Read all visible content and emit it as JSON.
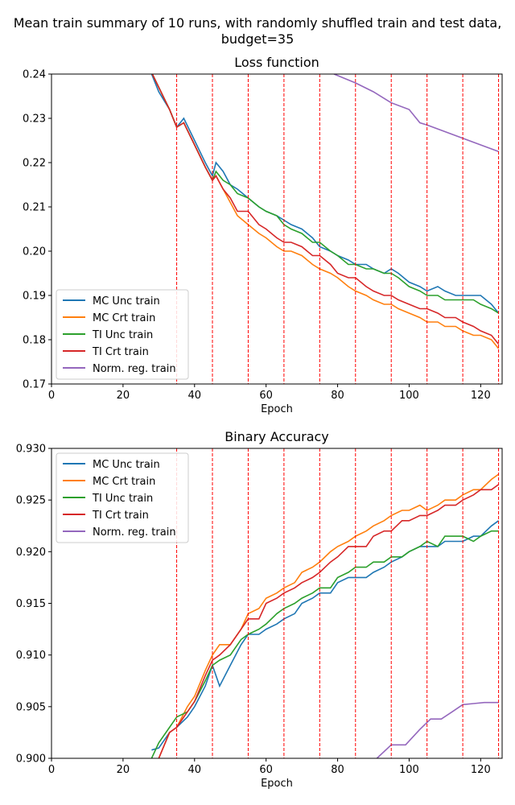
{
  "suptitle_line1": "Mean train summary of 10 runs, with randomly shuffled train and test data,",
  "suptitle_line2": "budget=35",
  "colors": {
    "MC Unc train": "#1f77b4",
    "MC Crt train": "#ff7f0e",
    "TI Unc train": "#2ca02c",
    "TI Crt train": "#d62728",
    "Norm. reg. train": "#9467bd",
    "vlines": "#ff0000"
  },
  "chart_data": [
    {
      "type": "line",
      "title": "Loss function",
      "xlabel": "Epoch",
      "ylabel": "",
      "xlim": [
        0,
        126
      ],
      "ylim": [
        0.17,
        0.24
      ],
      "xticks": [
        0,
        20,
        40,
        60,
        80,
        100,
        120
      ],
      "yticks": [
        0.17,
        0.18,
        0.19,
        0.2,
        0.21,
        0.22,
        0.23,
        0.24
      ],
      "ytick_labels": [
        "0.17",
        "0.18",
        "0.19",
        "0.20",
        "0.21",
        "0.22",
        "0.23",
        "0.24"
      ],
      "grid": false,
      "legend": "lower left",
      "vlines": [
        35,
        45,
        55,
        65,
        75,
        85,
        95,
        105,
        115,
        125
      ],
      "series": [
        {
          "name": "MC Unc train",
          "x": [
            27,
            30,
            33,
            35,
            37,
            40,
            43,
            45,
            46,
            48,
            50,
            52,
            55,
            58,
            60,
            63,
            65,
            67,
            70,
            73,
            75,
            78,
            80,
            83,
            85,
            88,
            90,
            93,
            95,
            97,
            100,
            103,
            105,
            108,
            110,
            113,
            115,
            118,
            120,
            123,
            125
          ],
          "y": [
            0.242,
            0.236,
            0.232,
            0.228,
            0.23,
            0.225,
            0.22,
            0.217,
            0.22,
            0.218,
            0.215,
            0.214,
            0.212,
            0.21,
            0.209,
            0.208,
            0.207,
            0.206,
            0.205,
            0.203,
            0.201,
            0.2,
            0.199,
            0.198,
            0.197,
            0.197,
            0.196,
            0.195,
            0.196,
            0.195,
            0.193,
            0.192,
            0.191,
            0.192,
            0.191,
            0.19,
            0.19,
            0.19,
            0.19,
            0.188,
            0.186
          ]
        },
        {
          "name": "MC Crt train",
          "x": [
            27,
            30,
            33,
            35,
            37,
            40,
            43,
            45,
            46,
            48,
            50,
            52,
            55,
            58,
            60,
            63,
            65,
            67,
            70,
            73,
            75,
            78,
            80,
            83,
            85,
            88,
            90,
            93,
            95,
            97,
            100,
            103,
            105,
            108,
            110,
            113,
            115,
            118,
            120,
            123,
            125
          ],
          "y": [
            0.242,
            0.237,
            0.232,
            0.228,
            0.229,
            0.224,
            0.219,
            0.216,
            0.217,
            0.214,
            0.211,
            0.208,
            0.206,
            0.204,
            0.203,
            0.201,
            0.2,
            0.2,
            0.199,
            0.197,
            0.196,
            0.195,
            0.194,
            0.192,
            0.191,
            0.19,
            0.189,
            0.188,
            0.188,
            0.187,
            0.186,
            0.185,
            0.184,
            0.184,
            0.183,
            0.183,
            0.182,
            0.181,
            0.181,
            0.18,
            0.178
          ]
        },
        {
          "name": "TI Unc train",
          "x": [
            27,
            30,
            33,
            35,
            37,
            40,
            43,
            45,
            46,
            48,
            50,
            52,
            55,
            58,
            60,
            63,
            65,
            67,
            70,
            73,
            75,
            78,
            80,
            83,
            85,
            88,
            90,
            93,
            95,
            97,
            100,
            103,
            105,
            108,
            110,
            113,
            115,
            118,
            120,
            123,
            125
          ],
          "y": [
            0.242,
            0.237,
            0.232,
            0.228,
            0.229,
            0.224,
            0.219,
            0.216,
            0.218,
            0.216,
            0.215,
            0.213,
            0.212,
            0.21,
            0.209,
            0.208,
            0.206,
            0.205,
            0.204,
            0.202,
            0.202,
            0.2,
            0.199,
            0.197,
            0.197,
            0.196,
            0.196,
            0.195,
            0.195,
            0.194,
            0.192,
            0.191,
            0.19,
            0.19,
            0.189,
            0.189,
            0.189,
            0.189,
            0.188,
            0.187,
            0.186
          ]
        },
        {
          "name": "TI Crt train",
          "x": [
            27,
            30,
            33,
            35,
            37,
            40,
            43,
            45,
            46,
            48,
            50,
            52,
            55,
            58,
            60,
            63,
            65,
            67,
            70,
            73,
            75,
            78,
            80,
            83,
            85,
            88,
            90,
            93,
            95,
            97,
            100,
            103,
            105,
            108,
            110,
            113,
            115,
            118,
            120,
            123,
            125
          ],
          "y": [
            0.242,
            0.237,
            0.232,
            0.228,
            0.229,
            0.224,
            0.219,
            0.216,
            0.217,
            0.214,
            0.212,
            0.209,
            0.209,
            0.206,
            0.205,
            0.203,
            0.202,
            0.202,
            0.201,
            0.199,
            0.199,
            0.197,
            0.195,
            0.194,
            0.194,
            0.192,
            0.191,
            0.19,
            0.19,
            0.189,
            0.188,
            0.187,
            0.187,
            0.186,
            0.185,
            0.185,
            0.184,
            0.183,
            0.182,
            0.181,
            0.179
          ]
        },
        {
          "name": "Norm. reg. train",
          "x": [
            79,
            85,
            90,
            95,
            100,
            103,
            105,
            110,
            115,
            120,
            125
          ],
          "y": [
            0.24,
            0.238,
            0.236,
            0.2335,
            0.232,
            0.229,
            0.2285,
            0.227,
            0.2255,
            0.224,
            0.2225
          ]
        }
      ]
    },
    {
      "type": "line",
      "title": "Binary Accuracy",
      "xlabel": "Epoch",
      "ylabel": "",
      "xlim": [
        0,
        126
      ],
      "ylim": [
        0.9,
        0.93
      ],
      "xticks": [
        0,
        20,
        40,
        60,
        80,
        100,
        120
      ],
      "yticks": [
        0.9,
        0.905,
        0.91,
        0.915,
        0.92,
        0.925,
        0.93
      ],
      "ytick_labels": [
        "0.900",
        "0.905",
        "0.910",
        "0.915",
        "0.920",
        "0.925",
        "0.930"
      ],
      "grid": false,
      "legend": "upper left",
      "vlines": [
        35,
        45,
        55,
        65,
        75,
        85,
        95,
        105,
        115,
        125
      ],
      "series": [
        {
          "name": "MC Unc train",
          "x": [
            28,
            30,
            33,
            35,
            38,
            40,
            43,
            45,
            47,
            50,
            53,
            55,
            58,
            60,
            63,
            65,
            68,
            70,
            73,
            75,
            78,
            80,
            83,
            85,
            88,
            90,
            93,
            95,
            98,
            100,
            103,
            105,
            108,
            110,
            113,
            115,
            118,
            120,
            123,
            125
          ],
          "y": [
            0.9008,
            0.901,
            0.9025,
            0.903,
            0.904,
            0.905,
            0.907,
            0.909,
            0.907,
            0.909,
            0.911,
            0.912,
            0.912,
            0.9125,
            0.913,
            0.9135,
            0.914,
            0.915,
            0.9155,
            0.916,
            0.916,
            0.917,
            0.9175,
            0.9175,
            0.9175,
            0.918,
            0.9185,
            0.919,
            0.9195,
            0.92,
            0.9205,
            0.9205,
            0.9205,
            0.921,
            0.921,
            0.921,
            0.9215,
            0.9215,
            0.9225,
            0.923
          ]
        },
        {
          "name": "MC Crt train",
          "x": [
            28,
            30,
            33,
            35,
            38,
            40,
            43,
            45,
            47,
            50,
            53,
            55,
            58,
            60,
            63,
            65,
            68,
            70,
            73,
            75,
            78,
            80,
            83,
            85,
            88,
            90,
            93,
            95,
            98,
            100,
            103,
            105,
            108,
            110,
            113,
            115,
            118,
            120,
            123,
            125
          ],
          "y": [
            0.8995,
            0.9,
            0.9025,
            0.903,
            0.905,
            0.906,
            0.9085,
            0.91,
            0.911,
            0.911,
            0.9125,
            0.914,
            0.9145,
            0.9155,
            0.916,
            0.9165,
            0.917,
            0.918,
            0.9185,
            0.919,
            0.92,
            0.9205,
            0.921,
            0.9215,
            0.922,
            0.9225,
            0.923,
            0.9235,
            0.924,
            0.924,
            0.9245,
            0.924,
            0.9245,
            0.925,
            0.925,
            0.9255,
            0.926,
            0.926,
            0.927,
            0.9275
          ]
        },
        {
          "name": "TI Unc train",
          "x": [
            28,
            30,
            33,
            35,
            38,
            40,
            43,
            45,
            47,
            50,
            53,
            55,
            58,
            60,
            63,
            65,
            68,
            70,
            73,
            75,
            78,
            80,
            83,
            85,
            88,
            90,
            93,
            95,
            98,
            100,
            103,
            105,
            108,
            110,
            113,
            115,
            118,
            120,
            123,
            125
          ],
          "y": [
            0.9,
            0.9015,
            0.903,
            0.904,
            0.9045,
            0.9055,
            0.9075,
            0.909,
            0.9095,
            0.91,
            0.9115,
            0.912,
            0.9125,
            0.913,
            0.914,
            0.9145,
            0.915,
            0.9155,
            0.916,
            0.9165,
            0.9165,
            0.9175,
            0.918,
            0.9185,
            0.9185,
            0.919,
            0.919,
            0.9195,
            0.9195,
            0.92,
            0.9205,
            0.921,
            0.9205,
            0.9215,
            0.9215,
            0.9215,
            0.921,
            0.9215,
            0.922,
            0.922
          ]
        },
        {
          "name": "TI Crt train",
          "x": [
            28,
            30,
            33,
            35,
            38,
            40,
            43,
            45,
            47,
            50,
            53,
            55,
            58,
            60,
            63,
            65,
            68,
            70,
            73,
            75,
            78,
            80,
            83,
            85,
            88,
            90,
            93,
            95,
            98,
            100,
            103,
            105,
            108,
            110,
            113,
            115,
            118,
            120,
            123,
            125
          ],
          "y": [
            0.8995,
            0.9,
            0.9025,
            0.903,
            0.9045,
            0.9055,
            0.908,
            0.9095,
            0.91,
            0.911,
            0.9125,
            0.9135,
            0.9135,
            0.915,
            0.9155,
            0.916,
            0.9165,
            0.917,
            0.9175,
            0.918,
            0.919,
            0.9195,
            0.9205,
            0.9205,
            0.9205,
            0.9215,
            0.922,
            0.922,
            0.923,
            0.923,
            0.9235,
            0.9235,
            0.924,
            0.9245,
            0.9245,
            0.925,
            0.9255,
            0.926,
            0.926,
            0.9265
          ]
        },
        {
          "name": "Norm. reg. train",
          "x": [
            91,
            95,
            99,
            103,
            106,
            109,
            112,
            115,
            118,
            121,
            125
          ],
          "y": [
            0.9,
            0.9013,
            0.9013,
            0.9028,
            0.9038,
            0.9038,
            0.9045,
            0.9052,
            0.9053,
            0.9054,
            0.9054
          ]
        }
      ]
    }
  ]
}
